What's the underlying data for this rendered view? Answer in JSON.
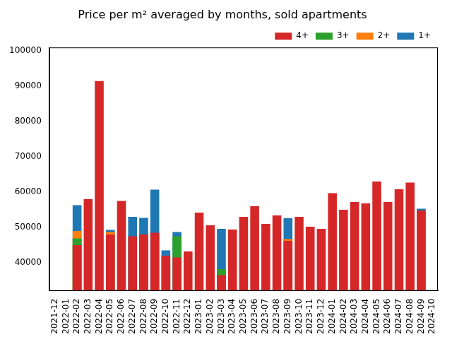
{
  "chart_data": {
    "type": "bar",
    "title": "Price per m² averaged by months, sold apartments",
    "categories": [
      "2021-12",
      "2022-01",
      "2022-02",
      "2022-03",
      "2022-04",
      "2022-05",
      "2022-06",
      "2022-07",
      "2022-08",
      "2022-09",
      "2022-10",
      "2022-11",
      "2022-12",
      "2023-01",
      "2023-02",
      "2023-03",
      "2023-04",
      "2023-05",
      "2023-06",
      "2023-07",
      "2023-08",
      "2023-09",
      "2023-10",
      "2023-11",
      "2023-12",
      "2024-01",
      "2024-02",
      "2024-03",
      "2024-04",
      "2024-05",
      "2024-06",
      "2024-07",
      "2024-08",
      "2024-09",
      "2024-10"
    ],
    "series": [
      {
        "name": "1+",
        "color": "#1f77b4",
        "values": [
          null,
          null,
          56300,
          null,
          null,
          49300,
          null,
          53000,
          52700,
          60700,
          43500,
          48700,
          null,
          null,
          null,
          49600,
          null,
          null,
          null,
          null,
          null,
          52600,
          null,
          null,
          null,
          null,
          null,
          null,
          null,
          null,
          null,
          null,
          null,
          55300,
          null
        ]
      },
      {
        "name": "2+",
        "color": "#ff7f0e",
        "values": [
          null,
          null,
          49000,
          null,
          null,
          48700,
          null,
          null,
          null,
          null,
          null,
          null,
          null,
          null,
          null,
          null,
          null,
          null,
          null,
          null,
          null,
          46700,
          null,
          null,
          null,
          null,
          null,
          null,
          null,
          null,
          null,
          null,
          null,
          null,
          null
        ]
      },
      {
        "name": "3+",
        "color": "#2ca02c",
        "values": [
          null,
          null,
          46900,
          null,
          null,
          null,
          null,
          null,
          null,
          null,
          null,
          47500,
          null,
          null,
          null,
          38200,
          null,
          null,
          null,
          null,
          null,
          null,
          null,
          null,
          null,
          null,
          null,
          null,
          null,
          null,
          null,
          null,
          null,
          null,
          null
        ]
      },
      {
        "name": "4+",
        "color": "#d62728",
        "values": [
          null,
          null,
          45000,
          58000,
          91500,
          48000,
          57500,
          47500,
          48000,
          48500,
          42000,
          41500,
          43200,
          54200,
          50600,
          36500,
          49400,
          53000,
          56000,
          51000,
          53400,
          46200,
          53000,
          50200,
          49600,
          59700,
          55000,
          57200,
          56800,
          63000,
          57200,
          60800,
          62700,
          54800,
          null
        ]
      }
    ],
    "ylim": [
      32000,
      101000
    ],
    "yticks": [
      40000,
      50000,
      60000,
      70000,
      80000,
      90000,
      100000
    ],
    "grid": false,
    "stacked": false,
    "legend": "upper right"
  }
}
